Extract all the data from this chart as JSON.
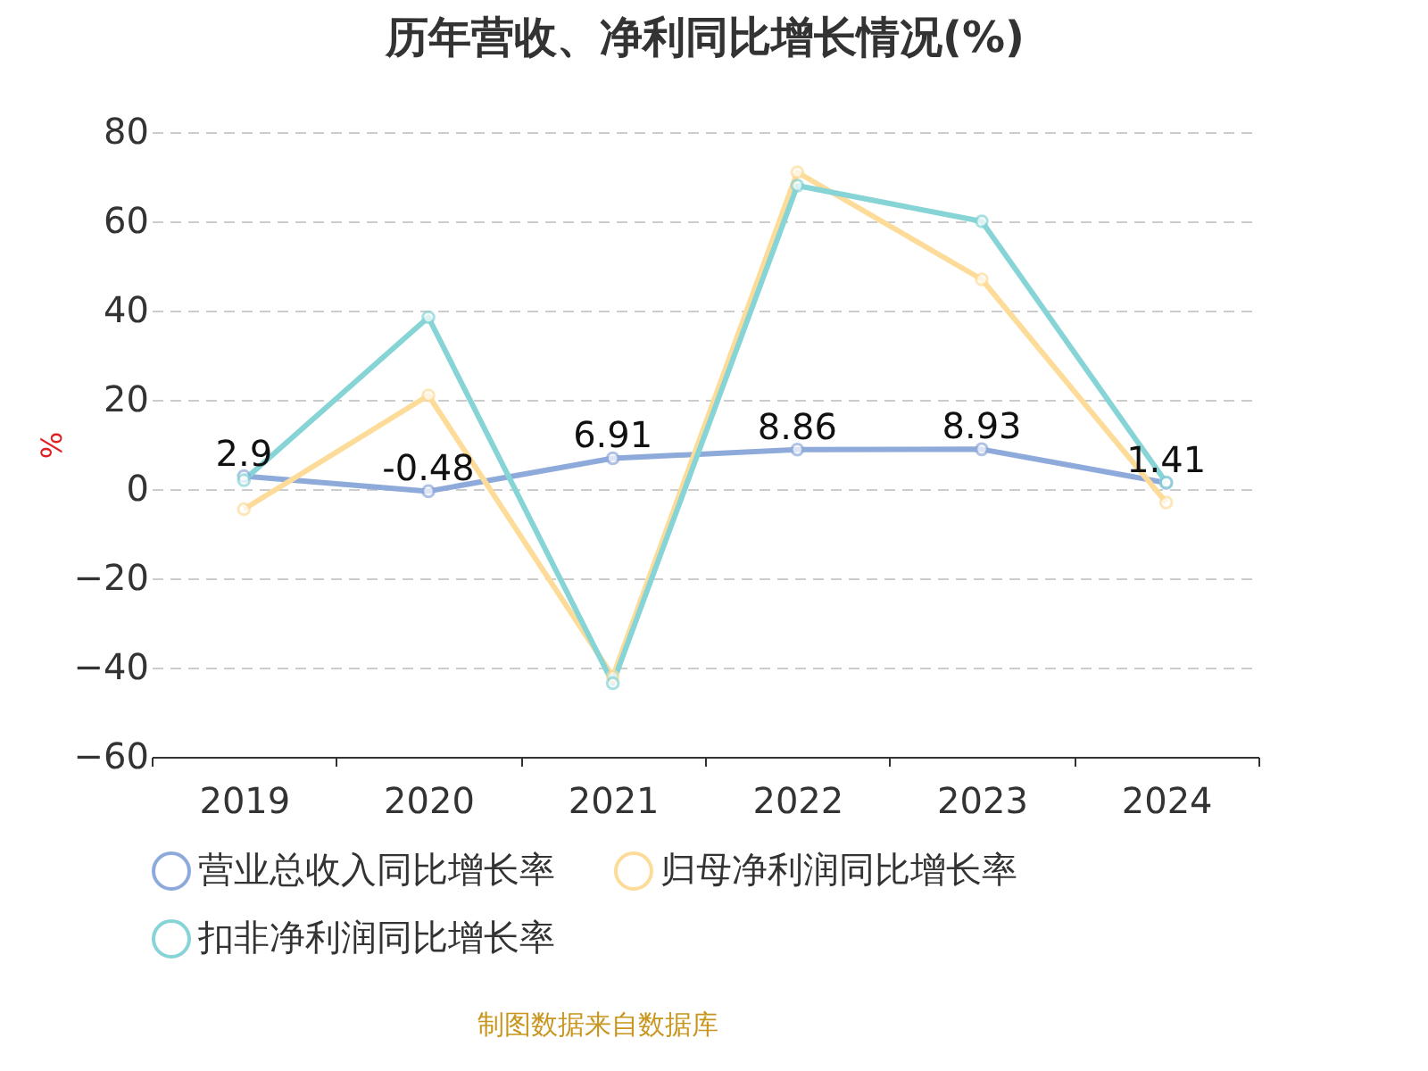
{
  "chart_data": {
    "type": "line",
    "title": "历年营收、净利同比增长情况(%)",
    "ylabel": "%",
    "categories": [
      "2019",
      "2020",
      "2021",
      "2022",
      "2023",
      "2024"
    ],
    "series": [
      {
        "name": "营业总收入同比增长率",
        "color": "#8eaadb",
        "values": [
          2.9,
          -0.48,
          6.91,
          8.86,
          8.93,
          1.41
        ],
        "value_labels": [
          "2.9",
          "-0.48",
          "6.91",
          "8.86",
          "8.93",
          "1.41"
        ]
      },
      {
        "name": "归母净利润同比增长率",
        "color": "#fddc9a",
        "values": [
          -4.5,
          21,
          -42,
          71,
          47,
          -3
        ]
      },
      {
        "name": "扣非净利润同比增长率",
        "color": "#86d4d6",
        "values": [
          2,
          38.5,
          -43.5,
          68,
          60,
          1.5
        ]
      }
    ],
    "ylim": [
      -60,
      80
    ],
    "yticks": [
      -60,
      -40,
      -20,
      0,
      20,
      40,
      60,
      80
    ],
    "grid": "y",
    "legend": "bottom",
    "marker": "circle",
    "line_style": "solid",
    "annotations": [
      "制图数据来自数据库"
    ]
  }
}
